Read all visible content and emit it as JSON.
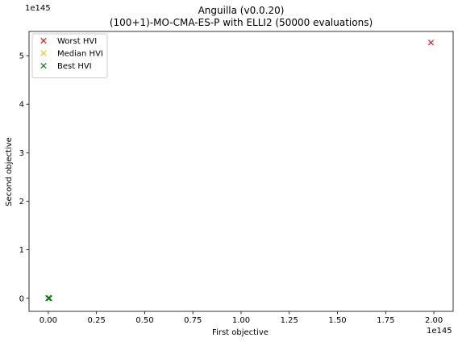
{
  "chart_data": {
    "type": "scatter",
    "title": "Anguilla (v0.0.20)",
    "subtitle": "(100+1)-MO-CMA-ES-P with ELLI2 (50000 evaluations)",
    "xlabel": "First objective",
    "ylabel": "Second objective",
    "x_offset_text": "1e145",
    "y_offset_text": "1e145",
    "xlim": [
      -0.1,
      2.1
    ],
    "ylim": [
      -0.27,
      5.5
    ],
    "x_ticks": [
      0.0,
      0.25,
      0.5,
      0.75,
      1.0,
      1.25,
      1.5,
      1.75,
      2.0
    ],
    "x_tick_labels": [
      "0.00",
      "0.25",
      "0.50",
      "0.75",
      "1.00",
      "1.25",
      "1.50",
      "1.75",
      "2.00"
    ],
    "y_ticks": [
      0,
      1,
      2,
      3,
      4,
      5
    ],
    "y_tick_labels": [
      "0",
      "1",
      "2",
      "3",
      "4",
      "5"
    ],
    "grid": false,
    "legend_position": "top-left",
    "series": [
      {
        "name": "Worst HVI",
        "color": "#ff0000",
        "marker": "x",
        "points": [
          [
            1.985,
            5.27
          ],
          [
            0.0,
            0.0
          ]
        ]
      },
      {
        "name": "Median HVI",
        "color": "#ffbf00",
        "marker": "x",
        "points": [
          [
            0.0,
            0.0
          ],
          [
            0.003,
            0.003
          ]
        ]
      },
      {
        "name": "Best HVI",
        "color": "#008000",
        "marker": "x",
        "points": [
          [
            0.0,
            0.0
          ],
          [
            0.004,
            0.002
          ],
          [
            0.002,
            0.004
          ],
          [
            0.006,
            0.001
          ],
          [
            0.001,
            0.006
          ]
        ]
      }
    ]
  }
}
